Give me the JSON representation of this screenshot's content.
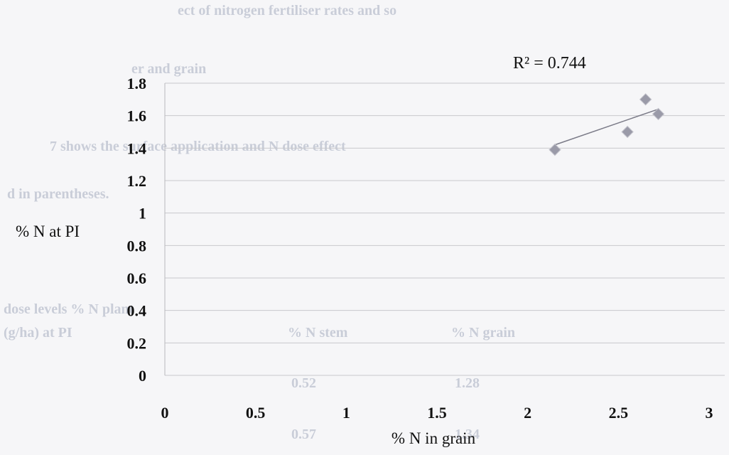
{
  "background_text": [
    "ect of nitrogen fertiliser rates and so",
    "er and grain",
    "7 shows the surface application and N dose effect",
    "d in parentheses.",
    "dose levels % N plant",
    "(g/ha)    at PI",
    "% N stem",
    "% N grain",
    "0.52",
    "1.28",
    "0.57",
    "1.34"
  ],
  "chart_data": {
    "type": "scatter",
    "xlabel": "% N in grain",
    "ylabel": "% N at PI",
    "xlim": [
      0,
      3
    ],
    "ylim": [
      0,
      1.8
    ],
    "x_ticks": [
      0,
      0.5,
      1,
      1.5,
      2,
      2.5,
      3
    ],
    "y_ticks": [
      0,
      0.2,
      0.4,
      0.6,
      0.8,
      1,
      1.2,
      1.4,
      1.6,
      1.8
    ],
    "x_tick_labels": [
      "0",
      "0.5",
      "1",
      "1.5",
      "2",
      "2.5",
      "3"
    ],
    "y_tick_labels": [
      "0",
      "0.2",
      "0.4",
      "0.6",
      "0.8",
      "1",
      "1.2",
      "1.4",
      "1.6",
      "1.8"
    ],
    "grid": "horizontal",
    "legend": "none",
    "series": [
      {
        "points": [
          {
            "x": 2.15,
            "y": 1.39
          },
          {
            "x": 2.55,
            "y": 1.5
          },
          {
            "x": 2.65,
            "y": 1.7
          },
          {
            "x": 2.72,
            "y": 1.61
          }
        ]
      }
    ],
    "trendline": {
      "from": [
        2.15,
        1.42
      ],
      "to": [
        2.72,
        1.64
      ]
    },
    "annotation": "R² = 0.744",
    "marker_color": "#9a9aa8",
    "trendline_color": "#7b7b88",
    "grid_color": "#c8c8cc"
  }
}
